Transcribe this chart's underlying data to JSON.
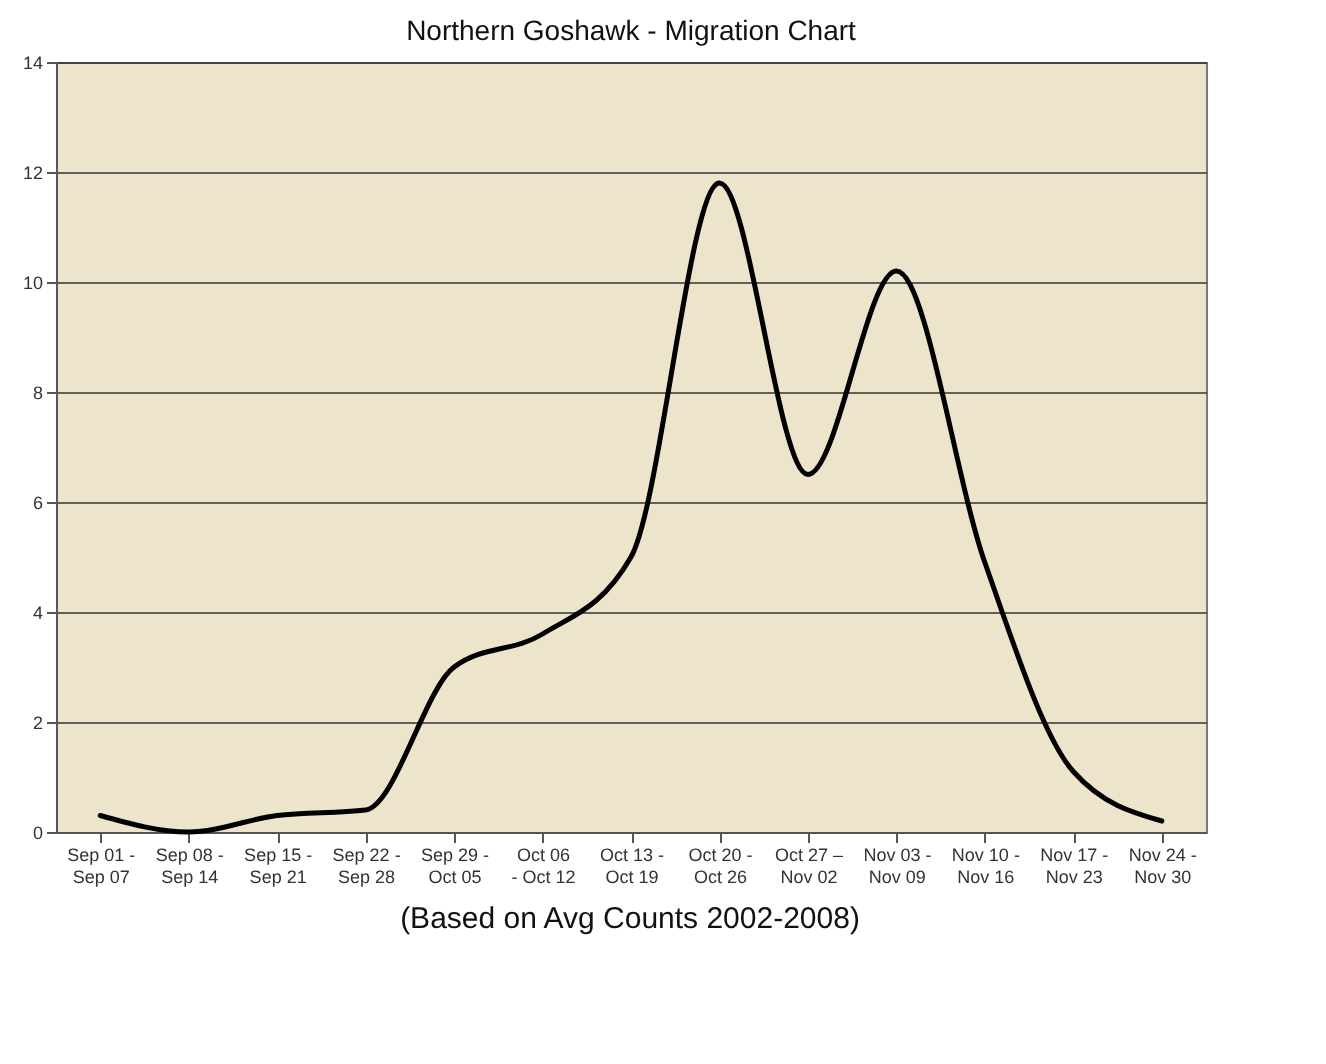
{
  "chart_data": {
    "type": "line",
    "title": "Northern Goshawk - Migration Chart",
    "categories": [
      "Sep 01 -\nSep 07",
      "Sep 08 -\nSep 14",
      "Sep 15 -\nSep 21",
      "Sep 22 -\nSep 28",
      "Sep 29 -\nOct 05",
      "Oct  06\n- Oct 12",
      "Oct 13 -\nOct 19",
      "Oct 20 -\nOct 26",
      "Oct 27 –\nNov 02",
      "Nov 03 -\nNov 09",
      "Nov 10 -\nNov 16",
      "Nov 17 -\nNov 23",
      "Nov 24 -\nNov 30"
    ],
    "series": [
      {
        "color": "#000000",
        "values": [
          0.3,
          0.0,
          0.3,
          0.4,
          3.0,
          3.6,
          5.0,
          11.8,
          6.5,
          10.2,
          4.9,
          1.1,
          0.2
        ]
      }
    ],
    "ylim": [
      0,
      14
    ],
    "yticks": [
      0,
      2,
      4,
      6,
      8,
      10,
      12,
      14
    ],
    "grid": "y",
    "legend": false,
    "marker": "none",
    "line_style": "solid",
    "annotations": [
      "(Based on Avg Counts 2002-2008)"
    ]
  }
}
